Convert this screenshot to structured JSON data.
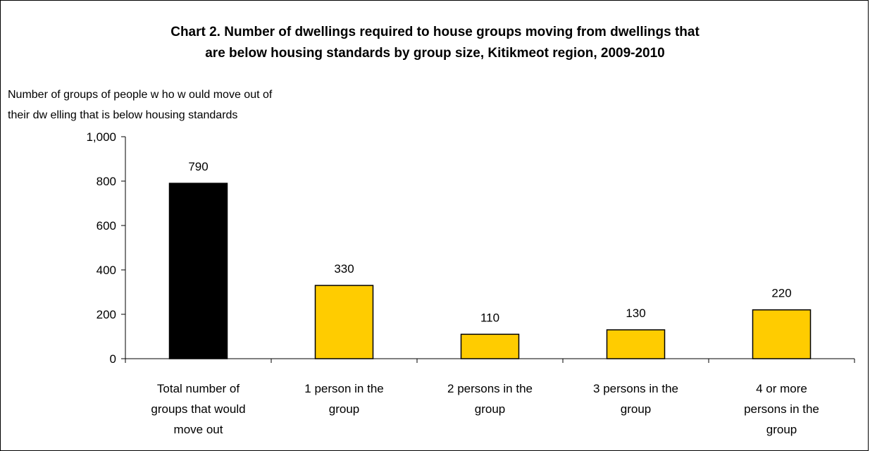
{
  "chart_data": {
    "type": "bar",
    "title_lines": [
      "Chart 2. Number of dwellings required to house groups moving from dwellings that",
      "are below housing standards by group size, Kitikmeot region, 2009-2010"
    ],
    "ylabel_lines": [
      "Number of groups of people w ho w ould move out of",
      "their dw elling that is below housing standards"
    ],
    "xlabel": "",
    "categories": [
      [
        "Total number of",
        "groups that would",
        "move out"
      ],
      [
        "1 person in the",
        "group"
      ],
      [
        "2 persons in the",
        "group"
      ],
      [
        "3 persons in the",
        "group"
      ],
      [
        "4 or more",
        "persons in the",
        "group"
      ]
    ],
    "values": [
      790,
      330,
      110,
      130,
      220
    ],
    "data_labels": [
      "790",
      "330",
      "110",
      "130",
      "220"
    ],
    "bar_colors": [
      "#000000",
      "#FFCC00",
      "#FFCC00",
      "#FFCC00",
      "#FFCC00"
    ],
    "ylim": [
      0,
      1000
    ],
    "yticks": [
      0,
      200,
      400,
      600,
      800,
      1000
    ],
    "ytick_labels": [
      "0",
      "200",
      "400",
      "600",
      "800",
      "1,000"
    ],
    "grid": false,
    "legend": "none"
  }
}
